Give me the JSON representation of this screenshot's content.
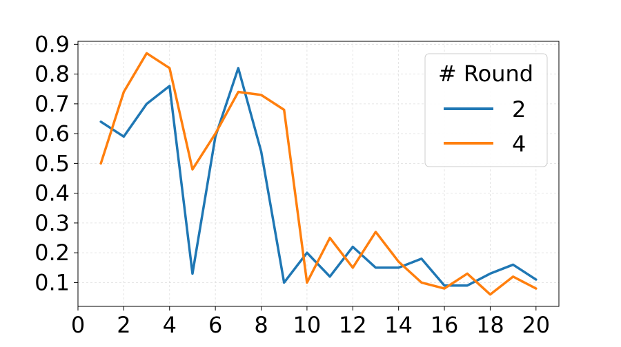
{
  "chart_data": {
    "type": "line",
    "title": "",
    "xlabel": "",
    "ylabel": "",
    "xlim": [
      0,
      21
    ],
    "ylim": [
      0.02,
      0.91
    ],
    "x_ticks": [
      0,
      2,
      4,
      6,
      8,
      10,
      12,
      14,
      16,
      18,
      20
    ],
    "y_ticks": [
      0.1,
      0.2,
      0.3,
      0.4,
      0.5,
      0.6,
      0.7,
      0.8,
      0.9
    ],
    "x_tick_labels": [
      "0",
      "2",
      "4",
      "6",
      "8",
      "10",
      "12",
      "14",
      "16",
      "18",
      "20"
    ],
    "y_tick_labels": [
      "0.1",
      "0.2",
      "0.3",
      "0.4",
      "0.5",
      "0.6",
      "0.7",
      "0.8",
      "0.9"
    ],
    "grid": true,
    "legend": {
      "title": "# Round",
      "placement": "top-right"
    },
    "x": [
      1,
      2,
      3,
      4,
      5,
      6,
      7,
      8,
      9,
      10,
      11,
      12,
      13,
      14,
      15,
      16,
      17,
      18,
      19,
      20
    ],
    "series": [
      {
        "name": "2",
        "color": "#1f77b4",
        "values": [
          0.64,
          0.59,
          0.7,
          0.76,
          0.13,
          0.59,
          0.82,
          0.54,
          0.1,
          0.2,
          0.12,
          0.22,
          0.15,
          0.15,
          0.18,
          0.09,
          0.09,
          0.13,
          0.16,
          0.11
        ]
      },
      {
        "name": "4",
        "color": "#ff7f0e",
        "values": [
          0.5,
          0.74,
          0.87,
          0.82,
          0.48,
          0.6,
          0.74,
          0.73,
          0.68,
          0.1,
          0.25,
          0.15,
          0.27,
          0.17,
          0.1,
          0.08,
          0.13,
          0.06,
          0.12,
          0.08
        ]
      }
    ]
  }
}
